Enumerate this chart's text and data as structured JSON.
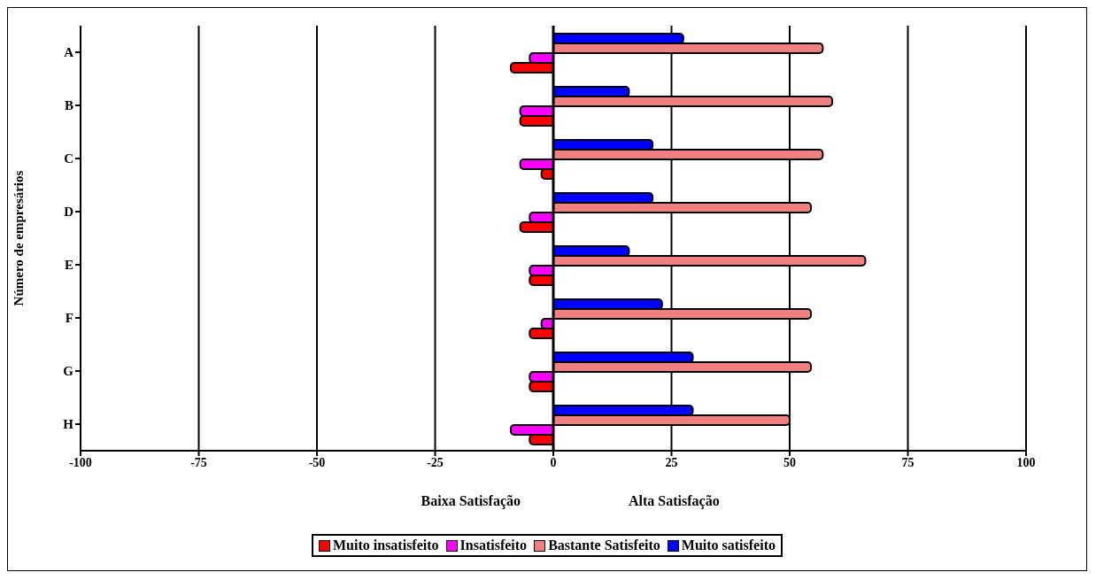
{
  "chart_data": {
    "type": "bar",
    "orientation": "horizontal",
    "ylabel": "Número de empresários",
    "annotations": [
      "Baixa Satisfação",
      "Alta Satisfação"
    ],
    "categories": [
      "A",
      "B",
      "C",
      "D",
      "E",
      "F",
      "G",
      "H"
    ],
    "series": [
      {
        "name": "Muito insatisfeito",
        "color": "#ff0000",
        "values": [
          -9,
          -7,
          -2.5,
          -7,
          -5,
          -5,
          -5,
          -5
        ]
      },
      {
        "name": "Insatisfeito",
        "color": "#ff00ff",
        "values": [
          -5,
          -7,
          -7,
          -5,
          -5,
          -2.5,
          -5,
          -9
        ]
      },
      {
        "name": "Bastante Satisfeito",
        "color": "#f08080",
        "values": [
          57,
          59,
          57,
          54.5,
          66,
          54.5,
          54.5,
          50
        ]
      },
      {
        "name": "Muito satisfeito",
        "color": "#0000ff",
        "values": [
          27.5,
          16,
          21,
          21,
          16,
          23,
          29.5,
          29.5
        ]
      }
    ],
    "xlim": [
      -100,
      100
    ],
    "xticks": [
      -100,
      -75,
      -50,
      -25,
      0,
      25,
      50,
      75,
      100
    ],
    "grid": "x",
    "legend": "bottom"
  }
}
